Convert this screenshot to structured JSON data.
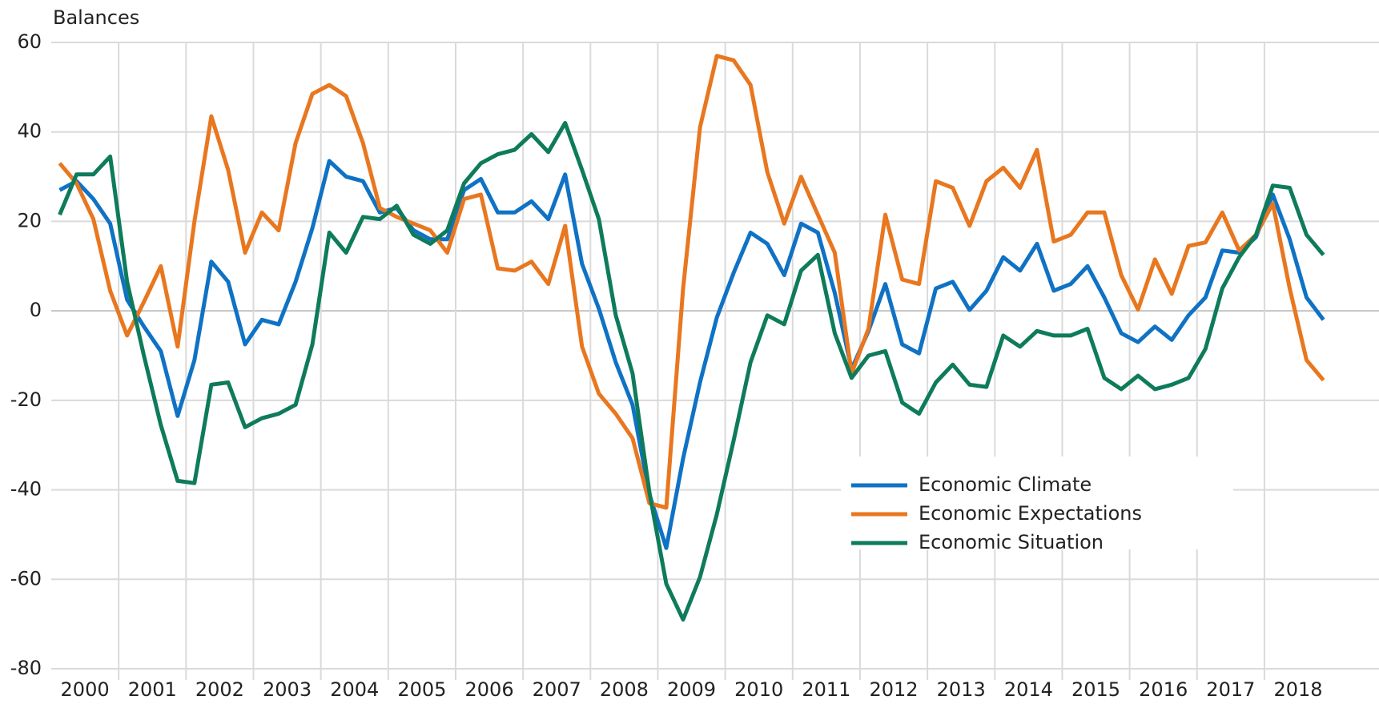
{
  "chart_data": {
    "type": "line",
    "y_label": "Balances",
    "x": [
      2000.125,
      2000.375,
      2000.625,
      2000.875,
      2001.125,
      2001.375,
      2001.625,
      2001.875,
      2002.125,
      2002.375,
      2002.625,
      2002.875,
      2003.125,
      2003.375,
      2003.625,
      2003.875,
      2004.125,
      2004.375,
      2004.625,
      2004.875,
      2005.125,
      2005.375,
      2005.625,
      2005.875,
      2006.125,
      2006.375,
      2006.625,
      2006.875,
      2007.125,
      2007.375,
      2007.625,
      2007.875,
      2008.125,
      2008.375,
      2008.625,
      2008.875,
      2009.125,
      2009.375,
      2009.625,
      2009.875,
      2010.125,
      2010.375,
      2010.625,
      2010.875,
      2011.125,
      2011.375,
      2011.625,
      2011.875,
      2012.125,
      2012.375,
      2012.625,
      2012.875,
      2013.125,
      2013.375,
      2013.625,
      2013.875,
      2014.125,
      2014.375,
      2014.625,
      2014.875,
      2015.125,
      2015.375,
      2015.625,
      2015.875,
      2016.125,
      2016.375,
      2016.625,
      2016.875,
      2017.125,
      2017.375,
      2017.625,
      2017.875,
      2018.125,
      2018.375,
      2018.625,
      2018.875
    ],
    "series": [
      {
        "name": "Economic Climate",
        "color": "#0f72c4",
        "values": [
          27,
          29,
          25,
          19.5,
          2.5,
          -3.5,
          -9,
          -23.5,
          -11,
          11,
          6.5,
          -7.5,
          -2,
          -3,
          6.5,
          18.5,
          33.5,
          30,
          29,
          22,
          23,
          18,
          16,
          16,
          27,
          29.5,
          22,
          22,
          24.5,
          20.5,
          30.5,
          10.5,
          0.5,
          -11.5,
          -21,
          -41,
          -53,
          -33,
          -16,
          -1.5,
          8.5,
          17.5,
          15,
          8,
          19.5,
          17.5,
          4,
          -13,
          -4.5,
          6,
          -7.5,
          -9.5,
          5,
          6.5,
          0.2,
          4.5,
          12,
          9,
          15,
          4.5,
          6,
          10,
          3,
          -5,
          -7,
          -3.5,
          -6.5,
          -1,
          3,
          13.5,
          13,
          16.5,
          26,
          16,
          3,
          -2
        ]
      },
      {
        "name": "Economic Expectations",
        "color": "#e8771f",
        "values": [
          33,
          28.5,
          20.5,
          4.5,
          -5.5,
          2,
          10,
          -8,
          20,
          43.5,
          31.5,
          13,
          22,
          18,
          37.5,
          48.5,
          50.5,
          48,
          37.5,
          23,
          21,
          19.5,
          18,
          13,
          25,
          26,
          9.5,
          9,
          11,
          6,
          19,
          -8,
          -18.5,
          -23,
          -28.5,
          -43,
          -44,
          5,
          41,
          57,
          56,
          50.5,
          31,
          19.5,
          30,
          21.5,
          13,
          -14,
          -4,
          21.5,
          7,
          6,
          29,
          27.5,
          19,
          29,
          32,
          27.5,
          36,
          15.5,
          17,
          22,
          22,
          8,
          0.3,
          11.5,
          3.8,
          14.5,
          15.3,
          22,
          13.5,
          17,
          24,
          5,
          -11,
          -15.5
        ]
      },
      {
        "name": "Economic Situation",
        "color": "#0e7b5b",
        "values": [
          21.5,
          30.5,
          30.5,
          34.5,
          6.5,
          -10,
          -25.5,
          -38,
          -38.5,
          -16.5,
          -16,
          -26,
          -24,
          -23,
          -21,
          -7.5,
          17.5,
          13,
          21,
          20.5,
          23.5,
          17,
          15,
          18,
          28.5,
          33,
          35,
          36,
          39.5,
          35.5,
          42,
          31.5,
          20.5,
          -1,
          -14,
          -40.5,
          -61,
          -69,
          -59.5,
          -45.5,
          -29,
          -11.5,
          -1,
          -3,
          9,
          12.5,
          -5,
          -15,
          -10,
          -9,
          -20.5,
          -23,
          -16,
          -12,
          -16.5,
          -17,
          -5.5,
          -8,
          -4.5,
          -5.5,
          -5.5,
          -4,
          -15,
          -17.5,
          -14.5,
          -17.5,
          -16.5,
          -15,
          -8.5,
          5,
          12,
          17,
          28,
          27.5,
          17,
          12.5
        ]
      }
    ],
    "xlim": [
      2000,
      2019.7
    ],
    "xticks": [
      2000,
      2001,
      2002,
      2003,
      2004,
      2005,
      2006,
      2007,
      2008,
      2009,
      2010,
      2011,
      2012,
      2013,
      2014,
      2015,
      2016,
      2017,
      2018
    ],
    "ylim": [
      -80,
      60
    ],
    "yticks": [
      -80,
      -60,
      -40,
      -20,
      0,
      20,
      40,
      60
    ],
    "grid": true,
    "legend": "lower right"
  }
}
